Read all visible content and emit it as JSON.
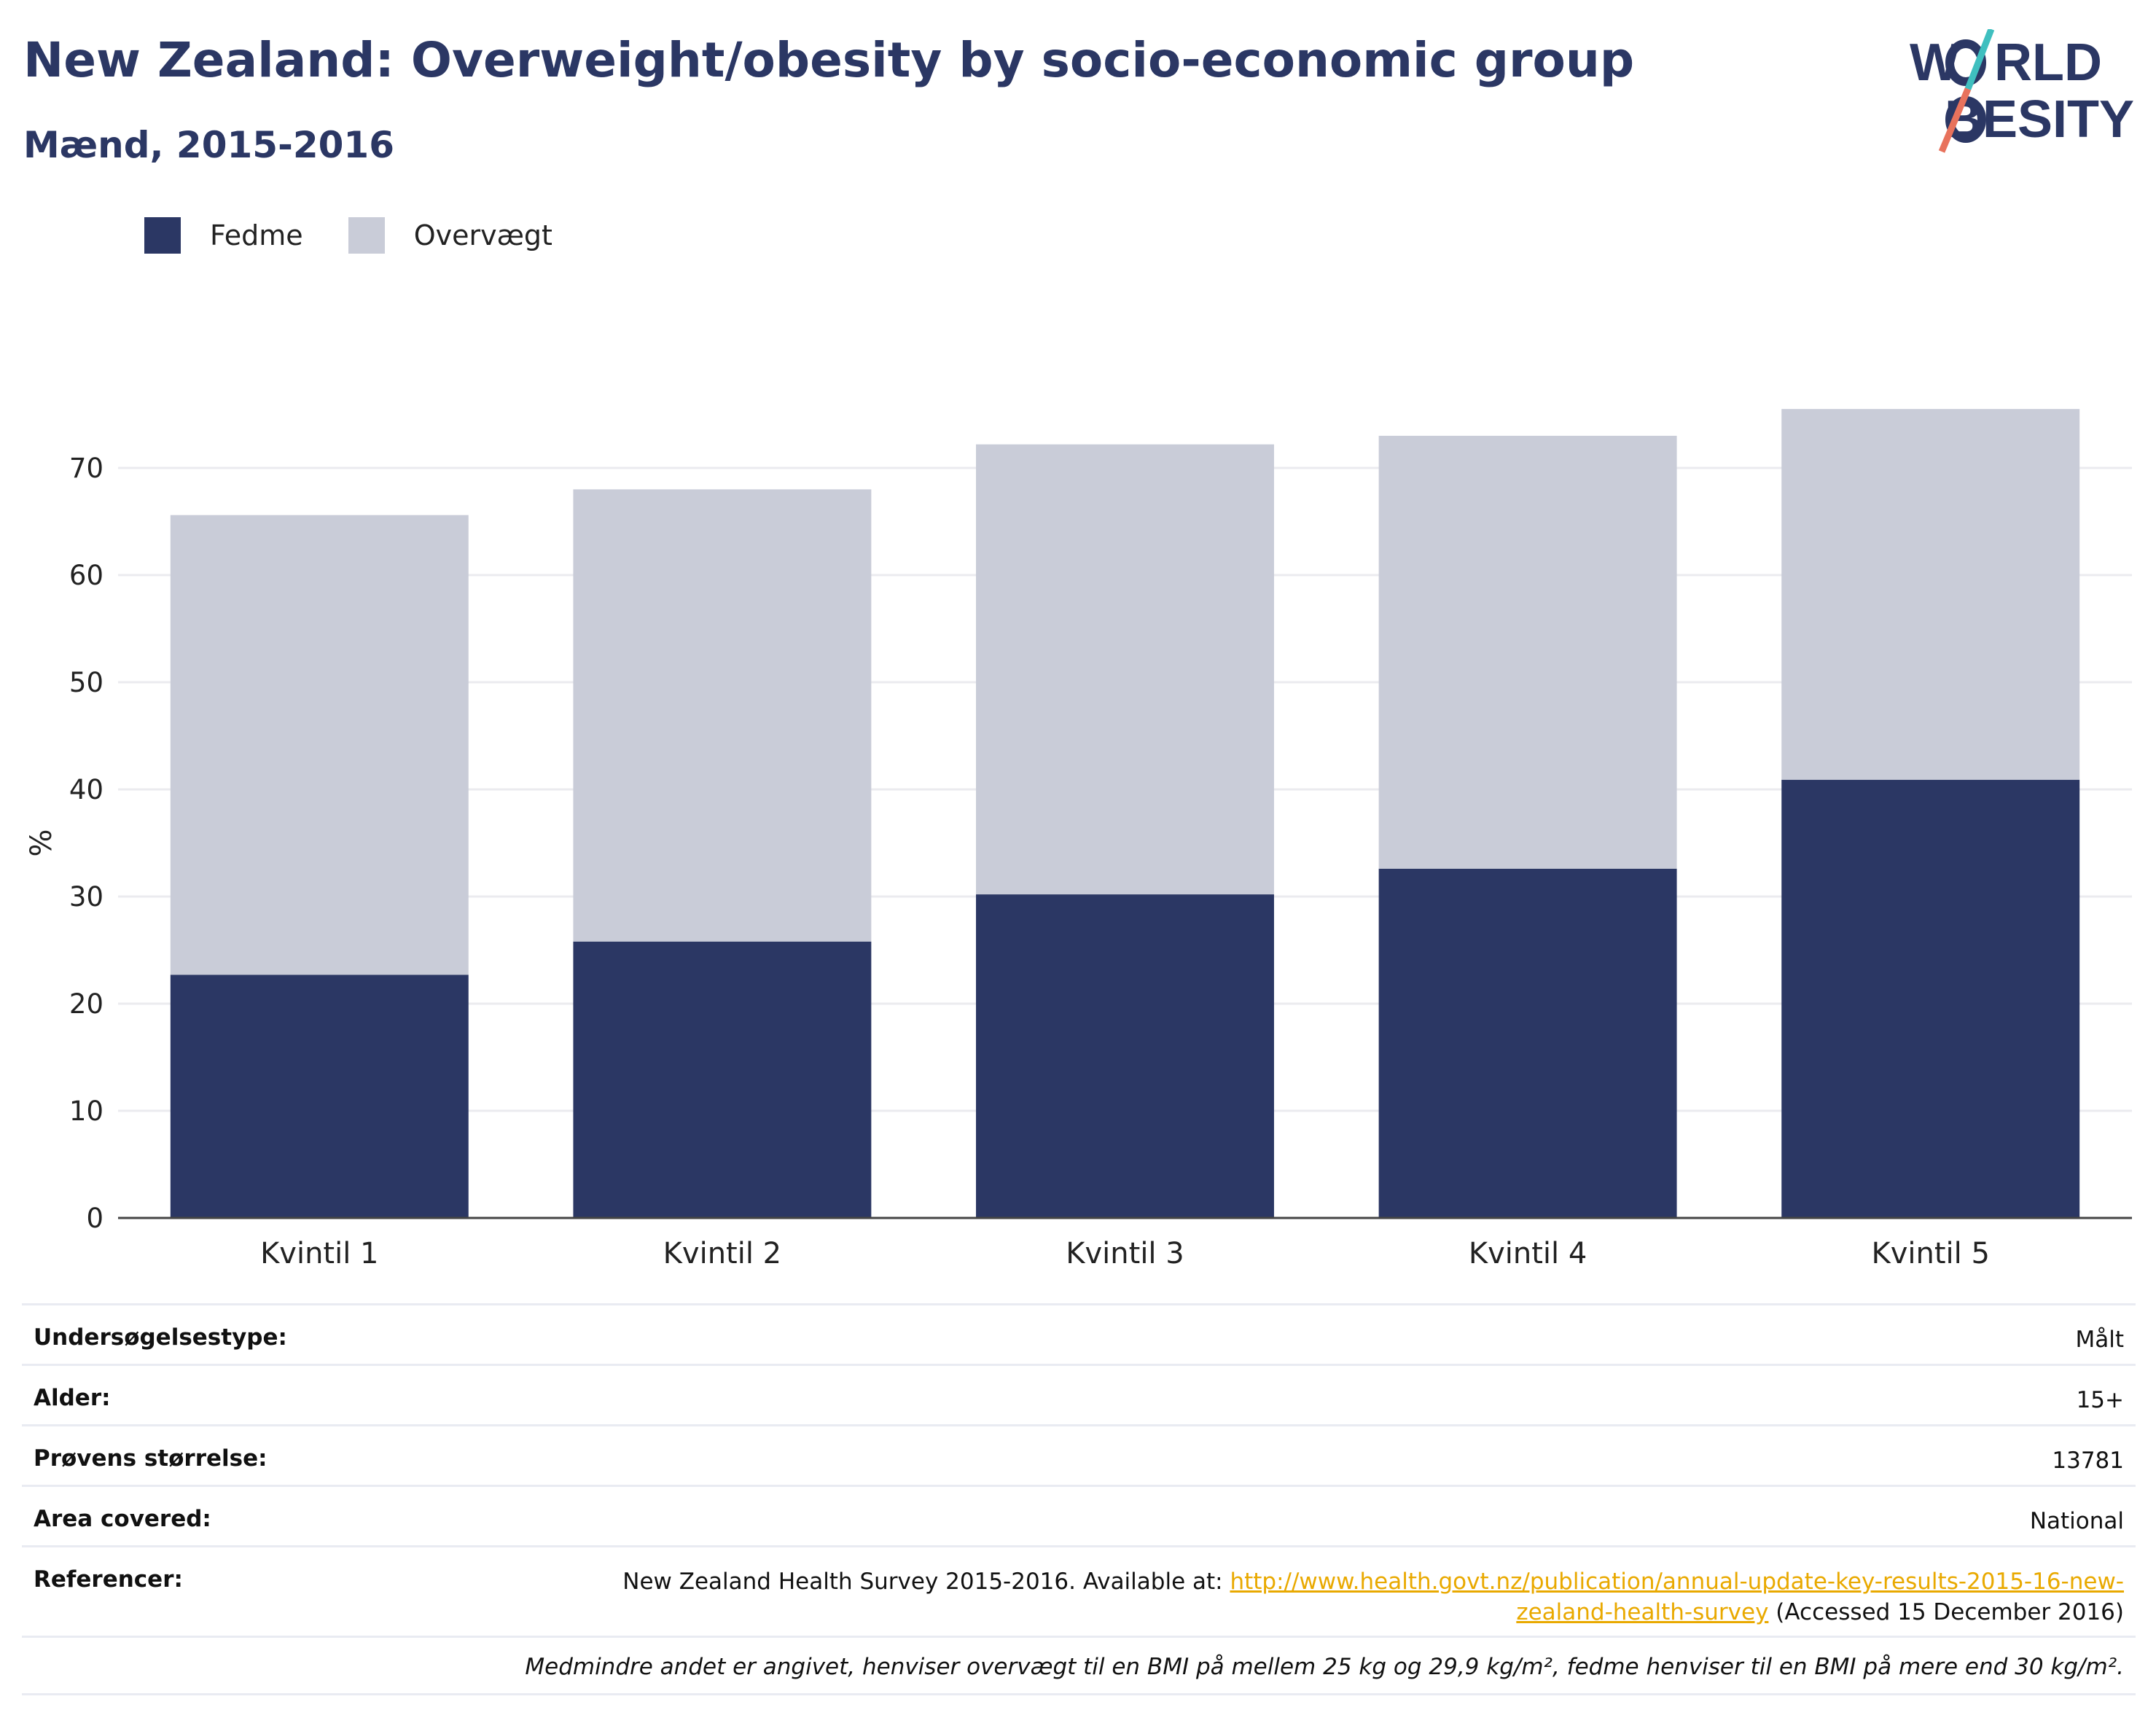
{
  "header": {
    "title": "New Zealand: Overweight/obesity by socio-economic group",
    "subtitle": "Mænd, 2015-2016"
  },
  "logo": {
    "line1": "W",
    "line1_rest": "RLD",
    "line2": "BESITY",
    "slash_colors": [
      "#3fbfbf",
      "#e8725c"
    ]
  },
  "colors": {
    "obesity": "#2b3764",
    "overweight": "#c9ccd8",
    "title": "#2b3764",
    "link": "#e9a900"
  },
  "chart_data": {
    "type": "bar",
    "stacked": true,
    "categories": [
      "Kvintil 1",
      "Kvintil 2",
      "Kvintil 3",
      "Kvintil 4",
      "Kvintil 5"
    ],
    "series": [
      {
        "name": "Fedme",
        "values": [
          22.7,
          25.8,
          30.2,
          32.6,
          40.9
        ]
      },
      {
        "name": "Overvægt",
        "values": [
          42.9,
          42.2,
          42.0,
          40.4,
          34.6
        ]
      }
    ],
    "ylabel": "%",
    "yticks": [
      0,
      10,
      20,
      30,
      40,
      50,
      60,
      70
    ],
    "ylim": [
      0,
      76
    ],
    "grid": true,
    "legend": "top-left"
  },
  "info": {
    "rows": [
      {
        "label": "Undersøgelsestype:",
        "value": "Målt"
      },
      {
        "label": "Alder:",
        "value": "15+"
      },
      {
        "label": "Prøvens størrelse:",
        "value": "13781"
      },
      {
        "label": "Area covered:",
        "value": "National"
      }
    ],
    "references": {
      "label": "Referencer:",
      "prefix": "New Zealand Health Survey 2015-2016. Available at: ",
      "link_line1": "http://www.health.govt.nz/publication/annual-update-key-results-2015-16-new-",
      "link_line2": "zealand-health-survey",
      "suffix": " (Accessed 15 December 2016)"
    },
    "note": "Medmindre andet er angivet, henviser overvægt til en BMI på mellem 25 kg og 29,9 kg/m², fedme henviser til en BMI på mere end 30 kg/m²."
  }
}
